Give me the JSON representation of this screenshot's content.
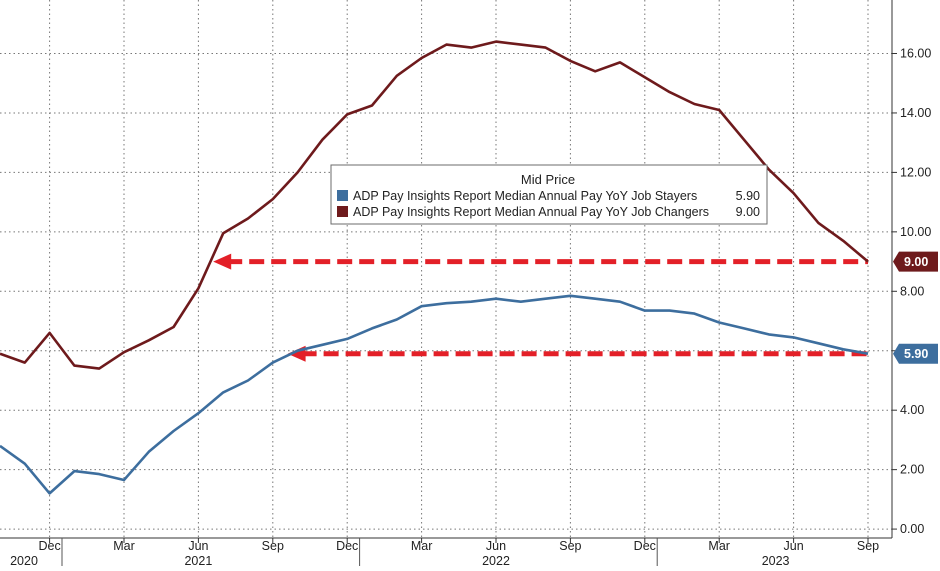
{
  "chart_data": {
    "type": "line",
    "title": "Mid Price",
    "grid": true,
    "legend_position": "center",
    "x_ticks": [
      "Dec",
      "Mar",
      "Jun",
      "Sep",
      "Dec",
      "Mar",
      "Jun",
      "Sep",
      "Dec",
      "Mar",
      "Jun",
      "Sep"
    ],
    "x_years": [
      "2020",
      "2021",
      "2022",
      "2023"
    ],
    "y_ticks": [
      "0.00",
      "2.00",
      "4.00",
      "6.00",
      "8.00",
      "10.00",
      "12.00",
      "14.00",
      "16.00"
    ],
    "ylim": [
      -0.3,
      17.8
    ],
    "x": [
      "2020-10",
      "2020-11",
      "2020-12",
      "2021-01",
      "2021-02",
      "2021-03",
      "2021-04",
      "2021-05",
      "2021-06",
      "2021-07",
      "2021-08",
      "2021-09",
      "2021-10",
      "2021-11",
      "2021-12",
      "2022-01",
      "2022-02",
      "2022-03",
      "2022-04",
      "2022-05",
      "2022-06",
      "2022-07",
      "2022-08",
      "2022-09",
      "2022-10",
      "2022-11",
      "2022-12",
      "2023-01",
      "2023-02",
      "2023-03",
      "2023-04",
      "2023-05",
      "2023-06",
      "2023-07",
      "2023-08",
      "2023-09"
    ],
    "series": [
      {
        "name": "ADP Pay Insights Report Median Annual Pay YoY Job Stayers",
        "last_value": "5.90",
        "color": "#3d6e9e",
        "values": [
          2.8,
          2.2,
          1.2,
          1.95,
          1.85,
          1.65,
          2.6,
          3.3,
          3.9,
          4.6,
          5.0,
          5.6,
          6.0,
          6.2,
          6.4,
          6.75,
          7.05,
          7.5,
          7.6,
          7.65,
          7.75,
          7.65,
          7.75,
          7.85,
          7.75,
          7.65,
          7.35,
          7.35,
          7.25,
          6.95,
          6.75,
          6.55,
          6.45,
          6.25,
          6.05,
          5.9
        ]
      },
      {
        "name": "ADP Pay Insights Report Median Annual Pay YoY Job Changers",
        "last_value": "9.00",
        "color": "#6e1a1c",
        "values": [
          5.9,
          5.6,
          6.6,
          5.5,
          5.4,
          5.95,
          6.35,
          6.8,
          8.1,
          9.95,
          10.45,
          11.1,
          12.0,
          13.1,
          13.95,
          14.25,
          15.25,
          15.85,
          16.3,
          16.2,
          16.4,
          16.3,
          16.2,
          15.75,
          15.4,
          15.7,
          15.2,
          14.7,
          14.3,
          14.1,
          13.1,
          12.1,
          11.3,
          10.3,
          9.7,
          9.0
        ]
      }
    ]
  }
}
